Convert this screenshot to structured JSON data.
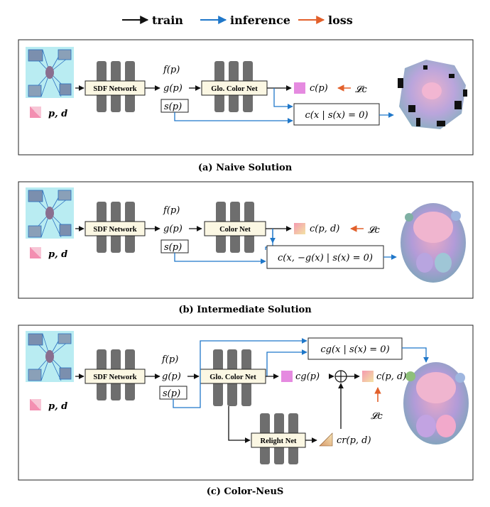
{
  "legend": {
    "train": "train",
    "inference": "inference",
    "loss": "loss"
  },
  "colors": {
    "train": "#111111",
    "inference": "#1f77c9",
    "loss": "#e2602b",
    "bar": "#6e6e6e",
    "box_fill": "#fbf7e3",
    "pink": "#e87fa6",
    "magenta": "#e58ae0",
    "gradient_a": "#f59ab0",
    "gradient_b": "#f3e3a4"
  },
  "panel_a": {
    "caption": "(a) Naive Solution",
    "sdf_label": "SDF Network",
    "color_label": "Glo. Color Net",
    "inputs": "p, d",
    "f": "f(p)",
    "g": "g(p)",
    "s": "s(p)",
    "out": "c(p)",
    "loss": "𝓛c",
    "infer": "c(x | s(x) = 0)"
  },
  "panel_b": {
    "caption": "(b) Intermediate Solution",
    "sdf_label": "SDF Network",
    "color_label": "Color Net",
    "inputs": "p, d",
    "f": "f(p)",
    "g": "g(p)",
    "s": "s(p)",
    "out": "c(p, d)",
    "loss": "𝓛c",
    "infer": "c(x, −g(x) | s(x) = 0)"
  },
  "panel_c": {
    "caption": "(c) Color-NeuS",
    "sdf_label": "SDF Network",
    "color_label": "Glo. Color Net",
    "relight_label": "Relight Net",
    "inputs": "p, d",
    "f": "f(p)",
    "g": "g(p)",
    "s": "s(p)",
    "cg": "cg(p)",
    "cr": "cr(p, d)",
    "out": "c(p, d)",
    "loss": "𝓛c",
    "infer": "cg(x | s(x) = 0)",
    "plus": "⊕"
  }
}
